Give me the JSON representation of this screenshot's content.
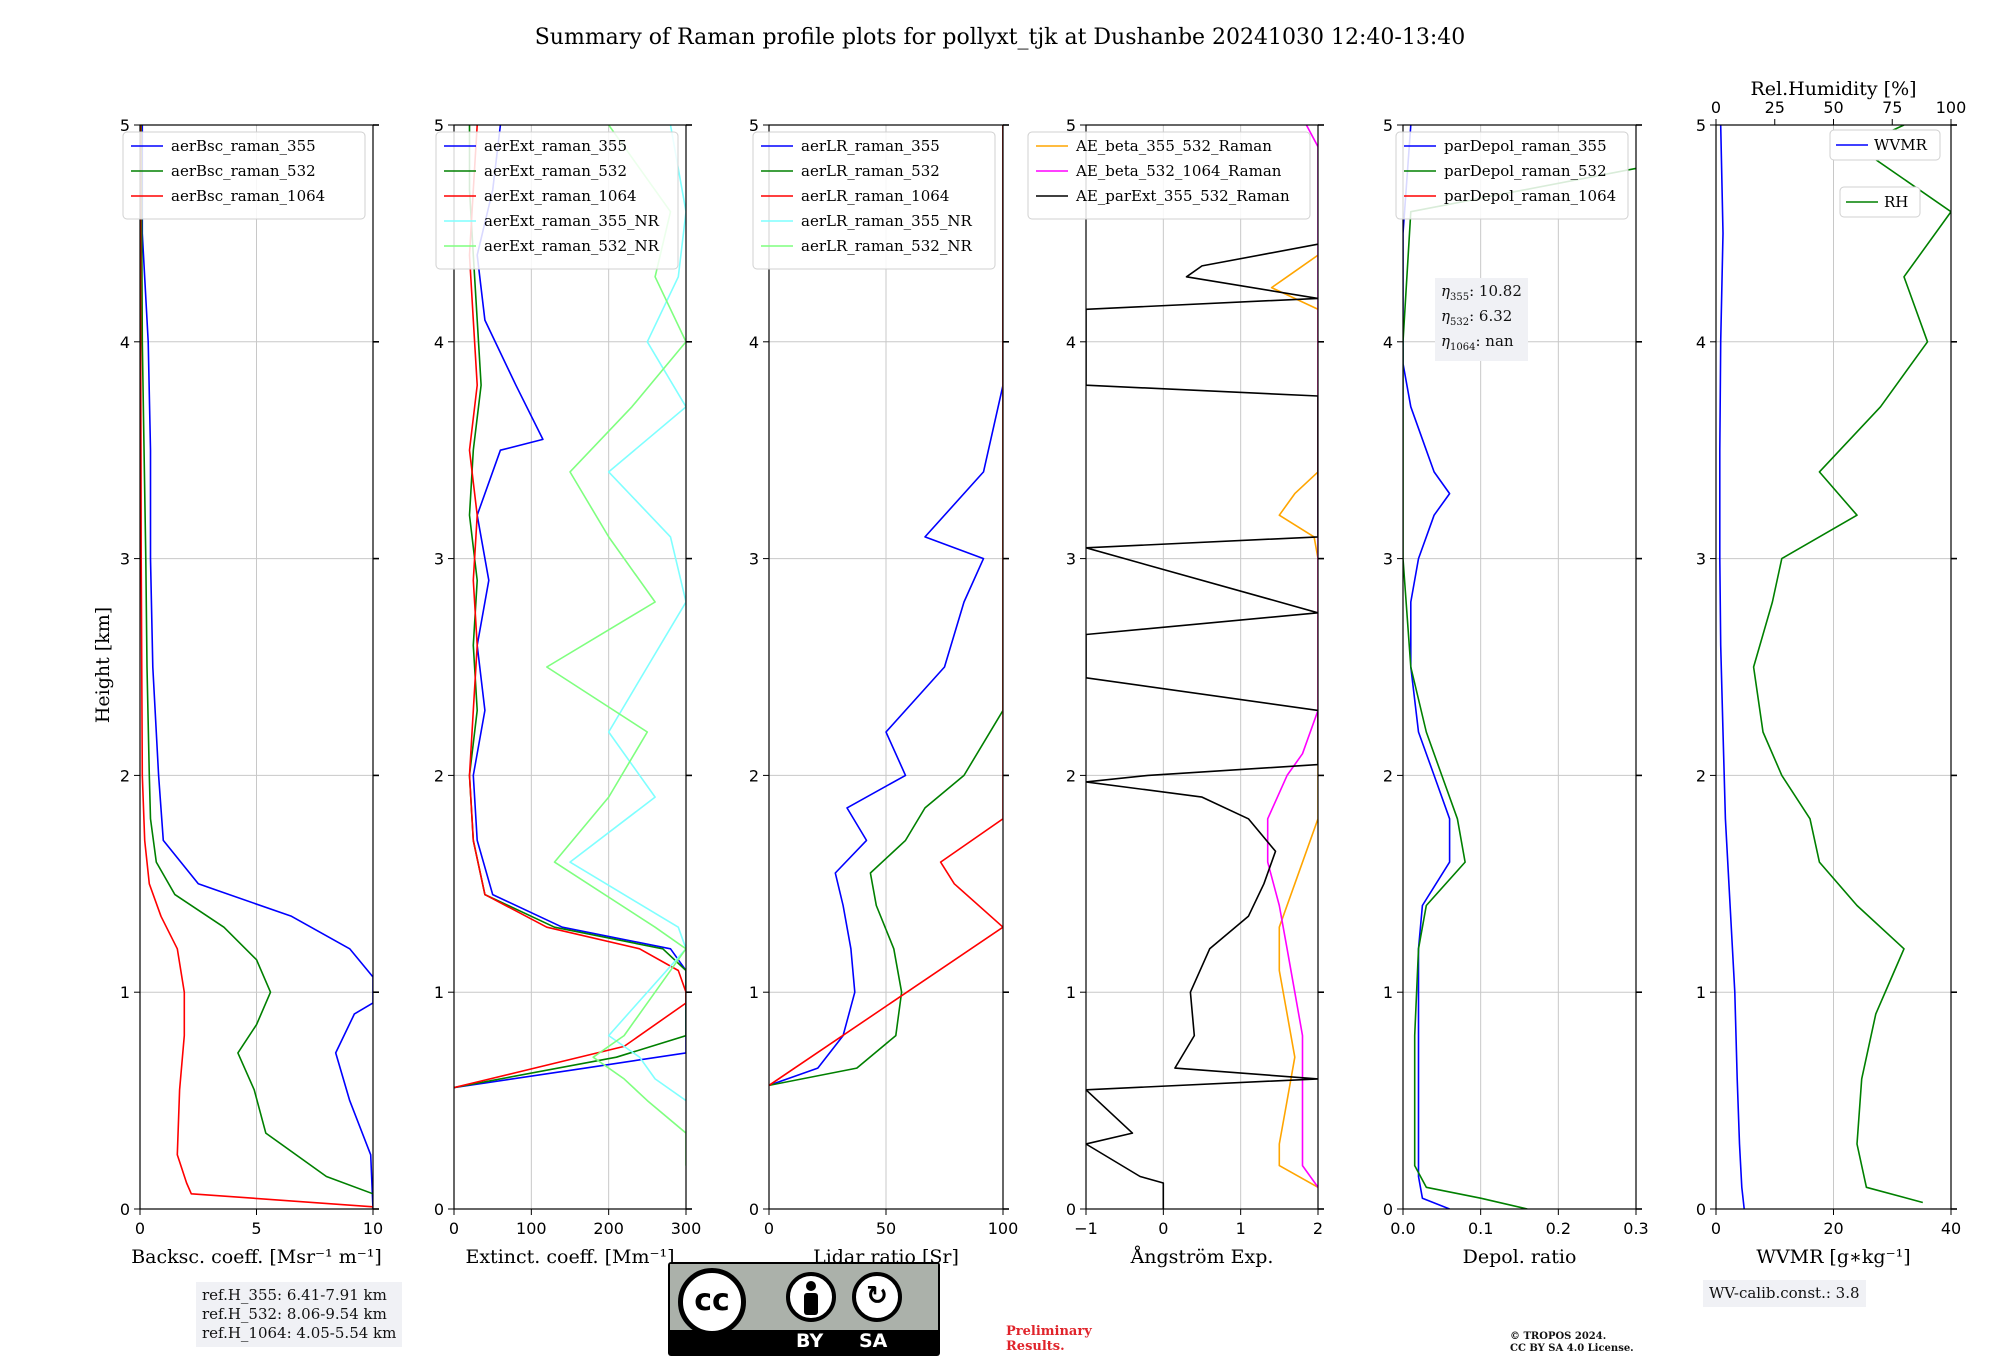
{
  "title": "Summary of Raman profile plots for pollyxt_tjk at Dushanbe 20241030 12:40-13:40",
  "ylabel": "Height [km]",
  "colors": {
    "blue": "#0000ff",
    "green": "#008000",
    "red": "#ff0000",
    "cyan": "#7fffff",
    "lightgreen": "#7fff7f",
    "orange": "#ffa500",
    "magenta": "#ff00ff",
    "black": "#000000",
    "grid": "#c8c8c8"
  },
  "ref_info": [
    "ref.H_355: 6.41-7.91 km",
    "ref.H_532: 8.06-9.54 km",
    "ref.H_1064: 4.05-5.54 km"
  ],
  "eta_info": {
    "eta355": "10.82",
    "eta532": "6.32",
    "eta1064": "nan"
  },
  "wv_calib": "WV-calib.const.: 3.8",
  "preliminary": [
    "Preliminary",
    "Results."
  ],
  "copyright": [
    "© TROPOS 2024.",
    "CC BY SA 4.0 License."
  ],
  "license_badge": {
    "left": "BY",
    "right": "SA",
    "logo": "cc-logo"
  },
  "chart_data": [
    {
      "type": "line",
      "xlabel": "Backsc. coeff. [Msr⁻¹ m⁻¹]",
      "xlim": [
        0,
        10
      ],
      "ylim": [
        0,
        5
      ],
      "xticks": [
        "0",
        "5",
        "10"
      ],
      "yticks": [
        "0",
        "1",
        "2",
        "3",
        "4",
        "5"
      ],
      "legend": "upper-right",
      "series": [
        {
          "name": "aerBsc_raman_355",
          "color": "#0000ff",
          "y": [
            0,
            0.25,
            0.5,
            0.72,
            0.9,
            0.95,
            1.07,
            1.2,
            1.35,
            1.5,
            1.7,
            2,
            2.5,
            3,
            3.5,
            4,
            4.5,
            5
          ],
          "x": [
            10,
            9.9,
            9.0,
            8.4,
            9.2,
            10,
            10,
            9,
            6.5,
            2.5,
            1.0,
            0.8,
            0.55,
            0.45,
            0.45,
            0.35,
            0.1,
            0.1
          ]
        },
        {
          "name": "aerBsc_raman_532",
          "color": "#008000",
          "y": [
            0.07,
            0.15,
            0.35,
            0.55,
            0.72,
            0.85,
            1.0,
            1.15,
            1.3,
            1.45,
            1.6,
            1.8,
            2.0,
            2.5,
            3,
            4,
            5
          ],
          "x": [
            10,
            8,
            5.4,
            4.9,
            4.2,
            5,
            5.6,
            5.0,
            3.6,
            1.5,
            0.7,
            0.45,
            0.4,
            0.3,
            0.25,
            0.1,
            0.05
          ]
        },
        {
          "name": "aerBsc_raman_1064",
          "color": "#ff0000",
          "y": [
            0.01,
            0.07,
            0.12,
            0.25,
            0.55,
            0.8,
            1.0,
            1.2,
            1.35,
            1.5,
            1.7,
            2.0,
            3,
            4,
            5
          ],
          "x": [
            10,
            2.2,
            2.0,
            1.6,
            1.7,
            1.9,
            1.9,
            1.6,
            0.9,
            0.4,
            0.2,
            0.1,
            0.05,
            0.03,
            0.02
          ]
        }
      ]
    },
    {
      "type": "line",
      "xlabel": "Extinct. coeff. [Mm⁻¹]",
      "xlim": [
        0,
        300
      ],
      "ylim": [
        0,
        5
      ],
      "xticks": [
        "0",
        "100",
        "200",
        "300"
      ],
      "yticks": [
        "0",
        "1",
        "2",
        "3",
        "4",
        "5"
      ],
      "legend": "upper-right",
      "series": [
        {
          "name": "aerExt_raman_355",
          "color": "#0000ff",
          "y": [
            0.56,
            0.65,
            0.72,
            1.1,
            1.2,
            1.3,
            1.45,
            1.7,
            2,
            2.3,
            2.6,
            2.9,
            3.2,
            3.5,
            3.55,
            3.8,
            4.1,
            4.4,
            4.7,
            5
          ],
          "x": [
            0,
            170,
            300,
            300,
            280,
            140,
            50,
            30,
            25,
            40,
            30,
            45,
            30,
            60,
            115,
            80,
            40,
            30,
            50,
            60
          ]
        },
        {
          "name": "aerExt_raman_532",
          "color": "#008000",
          "y": [
            0.56,
            0.7,
            0.8,
            1.1,
            1.2,
            1.3,
            1.45,
            1.7,
            2,
            2.3,
            2.6,
            2.9,
            3.2,
            3.5,
            3.8,
            4.1,
            4.4,
            4.7,
            5
          ],
          "x": [
            0,
            210,
            300,
            300,
            270,
            130,
            40,
            25,
            20,
            30,
            25,
            30,
            20,
            25,
            35,
            30,
            25,
            20,
            20
          ]
        },
        {
          "name": "aerExt_raman_1064",
          "color": "#ff0000",
          "y": [
            0.56,
            0.75,
            0.95,
            1.0,
            1.1,
            1.2,
            1.3,
            1.45,
            1.7,
            2,
            2.3,
            2.6,
            2.9,
            3.2,
            3.5,
            3.8,
            4.1,
            4.4,
            4.7,
            5
          ],
          "x": [
            0,
            220,
            300,
            300,
            290,
            240,
            120,
            40,
            25,
            20,
            25,
            30,
            25,
            30,
            20,
            30,
            25,
            20,
            25,
            30
          ]
        },
        {
          "name": "aerExt_raman_355_NR",
          "color": "#7fffff",
          "y": [
            0.5,
            0.6,
            0.7,
            0.8,
            1.2,
            1.3,
            1.6,
            1.9,
            2.2,
            2.5,
            2.8,
            3.1,
            3.4,
            3.7,
            4.0,
            4.3,
            4.6,
            5
          ],
          "x": [
            300,
            260,
            240,
            200,
            300,
            290,
            150,
            260,
            200,
            250,
            300,
            280,
            200,
            300,
            250,
            290,
            300,
            280
          ]
        },
        {
          "name": "aerExt_raman_532_NR",
          "color": "#7fff7f",
          "y": [
            0.2,
            0.35,
            0.5,
            0.6,
            0.7,
            0.8,
            1.2,
            1.3,
            1.6,
            1.9,
            2.2,
            2.5,
            2.8,
            3.1,
            3.4,
            3.7,
            4.0,
            4.3,
            4.6,
            5
          ],
          "x": [
            300,
            300,
            250,
            220,
            180,
            220,
            300,
            260,
            130,
            200,
            250,
            120,
            260,
            200,
            150,
            230,
            300,
            260,
            280,
            200
          ]
        }
      ]
    },
    {
      "type": "line",
      "xlabel": "Lidar ratio [Sr]",
      "xlim": [
        0,
        120
      ],
      "ylim": [
        0,
        5
      ],
      "xticks": [
        "0",
        "50",
        "100"
      ],
      "yticks": [
        "0",
        "1",
        "2",
        "3",
        "4",
        "5"
      ],
      "legend": "upper-right",
      "series": [
        {
          "name": "aerLR_raman_355",
          "color": "#0000ff",
          "y": [
            0.57,
            0.65,
            0.8,
            1.0,
            1.2,
            1.4,
            1.55,
            1.7,
            1.85,
            2.0,
            2.2,
            2.5,
            2.8,
            3.0,
            3.1,
            3.4,
            3.8,
            4.2,
            4.6,
            5
          ],
          "x": [
            0,
            25,
            38,
            44,
            42,
            38,
            34,
            50,
            40,
            70,
            60,
            90,
            100,
            110,
            80,
            110,
            120,
            120,
            120,
            120
          ]
        },
        {
          "name": "aerLR_raman_532",
          "color": "#008000",
          "y": [
            0.57,
            0.65,
            0.8,
            1.0,
            1.2,
            1.4,
            1.55,
            1.7,
            1.85,
            2.0,
            2.3,
            2.8,
            3.2,
            3.5,
            4.0,
            4.5,
            5
          ],
          "x": [
            0,
            45,
            65,
            68,
            64,
            55,
            52,
            70,
            80,
            100,
            120,
            120,
            120,
            120,
            120,
            120,
            120
          ]
        },
        {
          "name": "aerLR_raman_1064",
          "color": "#ff0000",
          "y": [
            0.57,
            1.3,
            1.5,
            1.6,
            1.8,
            2.0,
            2.2,
            2.8,
            3.2,
            3.6,
            4.0,
            4.2,
            4.8,
            5
          ],
          "x": [
            0,
            120,
            95,
            88,
            120,
            120,
            120,
            120,
            120,
            120,
            120,
            120,
            120,
            120
          ]
        },
        {
          "name": "aerLR_raman_355_NR",
          "color": "#7fffff",
          "y": [],
          "x": []
        },
        {
          "name": "aerLR_raman_532_NR",
          "color": "#7fff7f",
          "y": [],
          "x": []
        }
      ]
    },
    {
      "type": "line",
      "xlabel": "Ångström Exp.",
      "xlim": [
        -1,
        2
      ],
      "ylim": [
        0,
        5
      ],
      "xticks": [
        "−1",
        "0",
        "1",
        "2"
      ],
      "yticks": [
        "0",
        "1",
        "2",
        "3",
        "4",
        "5"
      ],
      "legend": "upper-right",
      "series": [
        {
          "name": "AE_beta_355_532_Raman",
          "color": "#ffa500",
          "y": [
            0.1,
            0.2,
            0.3,
            0.5,
            0.7,
            0.9,
            1.1,
            1.3,
            1.5,
            1.8,
            3.0,
            3.1,
            3.2,
            3.3,
            3.4,
            4.15,
            4.25,
            4.3,
            4.4
          ],
          "x": [
            2,
            1.5,
            1.5,
            1.6,
            1.7,
            1.6,
            1.5,
            1.5,
            1.7,
            2,
            2,
            1.95,
            1.5,
            1.7,
            2,
            2,
            1.4,
            1.6,
            2
          ]
        },
        {
          "name": "AE_beta_532_1064_Raman",
          "color": "#ff00ff",
          "y": [
            0.1,
            0.2,
            0.5,
            0.8,
            1.0,
            1.2,
            1.4,
            1.6,
            1.8,
            2.0,
            2.1,
            2.3,
            4.9,
            5.0
          ],
          "x": [
            2,
            1.8,
            1.8,
            1.8,
            1.7,
            1.6,
            1.5,
            1.35,
            1.35,
            1.6,
            1.8,
            2,
            2,
            1.85
          ]
        },
        {
          "name": "AE_parExt_355_532_Raman",
          "color": "#000000",
          "y": [
            0,
            0.12,
            0.15,
            0.3,
            0.35,
            0.55,
            0.6,
            0.65,
            0.8,
            1.0,
            1.2,
            1.35,
            1.5,
            1.65,
            1.8,
            1.9,
            1.97,
            2.0,
            2.05,
            2.3,
            2.45,
            2.65,
            2.75,
            3.05,
            3.1,
            3.75,
            3.8,
            4.15,
            4.2,
            4.3,
            4.35,
            4.45
          ],
          "x": [
            0,
            0,
            -0.3,
            -1,
            -0.4,
            -1,
            2,
            0.15,
            0.4,
            0.35,
            0.6,
            1.1,
            1.3,
            1.45,
            1.1,
            0.5,
            -1,
            -0.2,
            2,
            2,
            -1,
            -1,
            2,
            -1,
            2,
            2,
            -1,
            -1,
            2,
            0.3,
            0.5,
            2
          ]
        }
      ]
    },
    {
      "type": "line",
      "xlabel": "Depol. ratio",
      "xlim": [
        0,
        0.3
      ],
      "ylim": [
        0,
        5
      ],
      "xticks": [
        "0.0",
        "0.1",
        "0.2",
        "0.3"
      ],
      "yticks": [
        "0",
        "1",
        "2",
        "3",
        "4",
        "5"
      ],
      "legend": "upper-right",
      "series": [
        {
          "name": "parDepol_raman_355",
          "color": "#0000ff",
          "y": [
            0,
            0.05,
            0.15,
            0.3,
            0.5,
            0.8,
            1.0,
            1.2,
            1.4,
            1.6,
            1.8,
            2.0,
            2.2,
            2.5,
            2.8,
            3.0,
            3.2,
            3.3,
            3.4,
            3.5,
            3.7,
            3.9,
            4.5,
            5
          ],
          "x": [
            0.06,
            0.025,
            0.02,
            0.02,
            0.02,
            0.02,
            0.02,
            0.02,
            0.025,
            0.06,
            0.06,
            0.04,
            0.02,
            0.01,
            0.01,
            0.02,
            0.04,
            0.06,
            0.04,
            0.03,
            0.01,
            0,
            0,
            0.01
          ]
        },
        {
          "name": "parDepol_raman_532",
          "color": "#008000",
          "y": [
            0,
            0.05,
            0.1,
            0.2,
            0.4,
            0.8,
            1.2,
            1.4,
            1.6,
            1.8,
            2.0,
            2.2,
            2.5,
            3.0,
            4,
            4.6,
            4.8
          ],
          "x": [
            0.16,
            0.1,
            0.03,
            0.015,
            0.015,
            0.015,
            0.02,
            0.03,
            0.08,
            0.07,
            0.05,
            0.03,
            0.01,
            0,
            0,
            0.01,
            0.3
          ]
        },
        {
          "name": "parDepol_raman_1064",
          "color": "#ff0000",
          "y": [],
          "x": []
        }
      ]
    },
    {
      "type": "line",
      "xlabel": "WVMR [g∗kg⁻¹]",
      "x2label": "Rel.Humidity [%]",
      "xlim": [
        0,
        50
      ],
      "x2lim": [
        0,
        100
      ],
      "ylim": [
        0,
        5
      ],
      "xticks": [
        "0",
        "20",
        "40"
      ],
      "x2ticks": [
        "0",
        "25",
        "50",
        "75",
        "100"
      ],
      "yticks": [
        "0",
        "1",
        "2",
        "3",
        "4",
        "5"
      ],
      "legend": "upper-right",
      "series": [
        {
          "name": "WVMR",
          "color": "#0000ff",
          "y": [
            0,
            0.1,
            0.3,
            0.6,
            1.0,
            1.4,
            1.8,
            2.2,
            2.6,
            3.0,
            3.5,
            4.0,
            4.5,
            5
          ],
          "x": [
            6,
            5.5,
            5,
            4.5,
            4,
            3,
            2,
            1.5,
            1,
            0.8,
            0.8,
            1,
            1.5,
            1
          ]
        },
        {
          "name": "RH",
          "color": "#008000",
          "y": [
            0.03,
            0.1,
            0.3,
            0.6,
            0.9,
            1.1,
            1.2,
            1.4,
            1.6,
            1.8,
            2.0,
            2.2,
            2.5,
            2.8,
            3.0,
            3.2,
            3.4,
            3.7,
            4.0,
            4.3,
            4.6,
            4.9,
            5
          ],
          "x": [
            44,
            32,
            30,
            31,
            34,
            38,
            40,
            30,
            22,
            20,
            14,
            10,
            8,
            12,
            14,
            30,
            22,
            35,
            45,
            40,
            50,
            30,
            40
          ]
        }
      ]
    }
  ]
}
